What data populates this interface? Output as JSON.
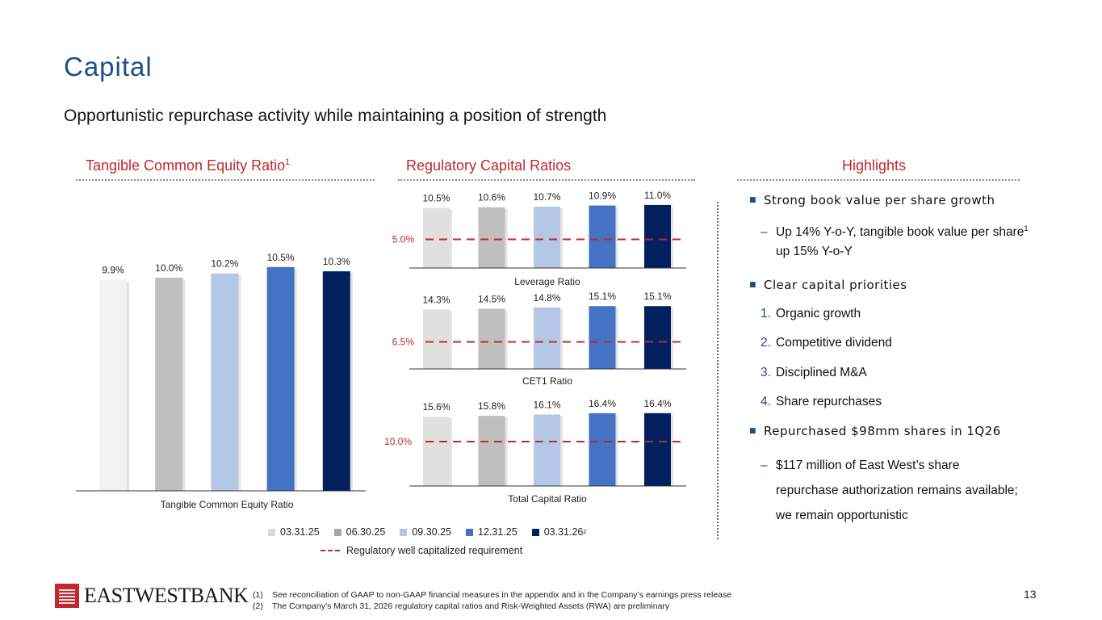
{
  "title": "Capital",
  "subtitle": "Opportunistic repurchase activity while maintaining a position of strength",
  "sections": {
    "tce": {
      "title": "Tangible Common Equity Ratio",
      "sup": "1"
    },
    "regulatory": {
      "title": "Regulatory Capital Ratios"
    },
    "highlights": {
      "title": "Highlights"
    }
  },
  "colors": [
    "#f2f2f2",
    "#bfbfbf",
    "#b4c7e7",
    "#4472c4",
    "#002060"
  ],
  "threshold_color": "#c0282d",
  "chart_data": [
    {
      "type": "bar",
      "xlabel": "Tangible Common Equity Ratio",
      "categories": [
        "03.31.25",
        "06.30.25",
        "09.30.25",
        "12.31.25",
        "03.31.26"
      ],
      "values": [
        9.9,
        10.0,
        10.2,
        10.5,
        10.3
      ],
      "labels": [
        "9.9%",
        "10.0%",
        "10.2%",
        "10.5%",
        "10.3%"
      ]
    },
    {
      "type": "bar",
      "xlabel": "Leverage Ratio",
      "categories": [
        "03.31.25",
        "06.30.25",
        "09.30.25",
        "12.31.25",
        "03.31.26"
      ],
      "values": [
        10.5,
        10.6,
        10.7,
        10.9,
        11.0
      ],
      "labels": [
        "10.5%",
        "10.6%",
        "10.7%",
        "10.9%",
        "11.0%"
      ],
      "threshold": 5.0,
      "threshold_label": "5.0%"
    },
    {
      "type": "bar",
      "xlabel": "CET1 Ratio",
      "categories": [
        "03.31.25",
        "06.30.25",
        "09.30.25",
        "12.31.25",
        "03.31.26"
      ],
      "values": [
        14.3,
        14.5,
        14.8,
        15.1,
        15.1
      ],
      "labels": [
        "14.3%",
        "14.5%",
        "14.8%",
        "15.1%",
        "15.1%"
      ],
      "threshold": 6.5,
      "threshold_label": "6.5%"
    },
    {
      "type": "bar",
      "xlabel": "Total Capital Ratio",
      "categories": [
        "03.31.25",
        "06.30.25",
        "09.30.25",
        "12.31.25",
        "03.31.26"
      ],
      "values": [
        15.6,
        15.8,
        16.1,
        16.4,
        16.4
      ],
      "labels": [
        "15.6%",
        "15.8%",
        "16.1%",
        "16.4%",
        "16.4%"
      ],
      "threshold": 10.0,
      "threshold_label": "10.0%"
    }
  ],
  "legend": {
    "items": [
      {
        "label": "03.31.25",
        "sup": ""
      },
      {
        "label": "06.30.25",
        "sup": ""
      },
      {
        "label": "09.30.25",
        "sup": ""
      },
      {
        "label": "12.31.25",
        "sup": ""
      },
      {
        "label": "03.31.26",
        "sup": "2"
      }
    ],
    "threshold_label": "Regulatory well capitalized requirement"
  },
  "highlights": {
    "book_value": "Strong book value per share growth",
    "book_value_sub_a": "Up 14% Y-o-Y, tangible book value per share",
    "book_value_sub_sup": "1",
    "book_value_sub_b": " up 15% Y-o-Y",
    "priorities": "Clear capital priorities",
    "priority_items": [
      {
        "num": "1.",
        "text": "Organic growth"
      },
      {
        "num": "2.",
        "text": "Competitive dividend"
      },
      {
        "num": "3.",
        "text": "Disciplined M&A"
      },
      {
        "num": "4.",
        "text": "Share repurchases"
      }
    ],
    "repurchased": "Repurchased $98mm shares in 1Q26",
    "repurchased_sub": "$117 million of East West’s share repurchase authorization remains available; we remain opportunistic",
    "dash": "–"
  },
  "logo": {
    "text": "EASTWESTBANK"
  },
  "footnotes": [
    {
      "num": "(1)",
      "text": "See reconciliation of GAAP to non-GAAP financial measures in the appendix and in the Company’s earnings press release"
    },
    {
      "num": "(2)",
      "text": "The Company’s March 31, 2026 regulatory capital ratios and Risk-Weighted Assets (RWA) are preliminary"
    }
  ],
  "page_number": "13"
}
